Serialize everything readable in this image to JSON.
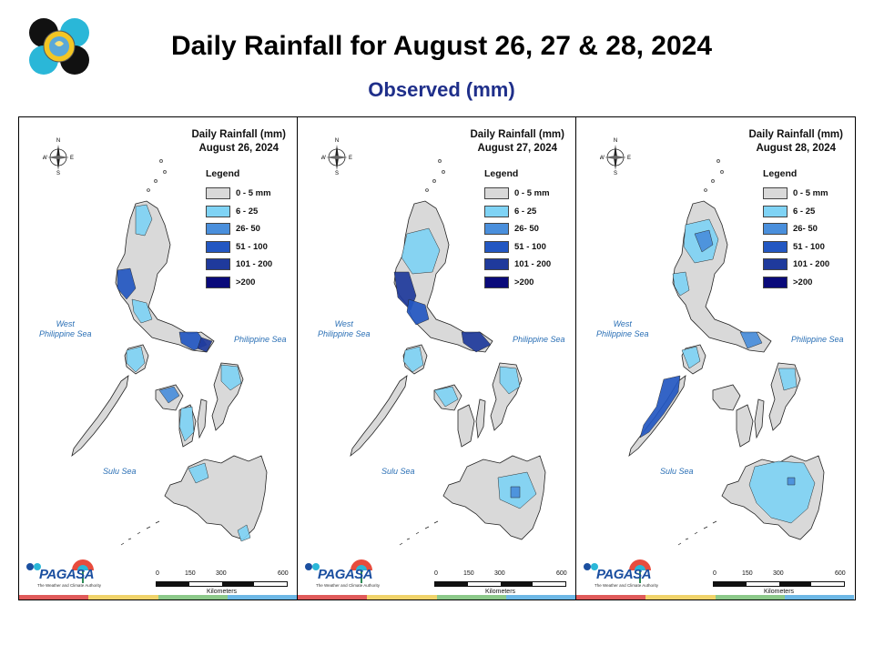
{
  "header": {
    "title": "Daily Rainfall for August 26, 27 & 28, 2024",
    "subtitle": "Observed (mm)"
  },
  "legend": {
    "title": "Legend",
    "classes": [
      {
        "label": "0 - 5 mm",
        "color": "#d9d9d9"
      },
      {
        "label": "6 - 25",
        "color": "#7fd3f5"
      },
      {
        "label": "26- 50",
        "color": "#4a8fdc"
      },
      {
        "label": "51 - 100",
        "color": "#2357c2"
      },
      {
        "label": "101 - 200",
        "color": "#1f3a9c"
      },
      {
        "label": ">200",
        "color": "#0a0a7a"
      }
    ]
  },
  "labels": {
    "west_sea": "West\nPhilippine Sea",
    "east_sea": "Philippine Sea",
    "sulu_sea": "Sulu Sea",
    "compass_n": "N",
    "compass_s": "S",
    "compass_e": "E",
    "compass_w": "W",
    "scale_ticks": [
      "0",
      "150",
      "300",
      "600"
    ],
    "scale_unit": "Kilometers",
    "pagasa_name": "PAGASA",
    "pagasa_tag": "The Weather and Climate Authority",
    "pagasa_dost": "DOST"
  },
  "panels": [
    {
      "heading": "Daily Rainfall (mm)",
      "date": "August 26, 2024"
    },
    {
      "heading": "Daily Rainfall (mm)",
      "date": "August 27, 2024"
    },
    {
      "heading": "Daily Rainfall (mm)",
      "date": "August 28, 2024"
    }
  ],
  "colors": {
    "stripe_red": "#e05a5a",
    "stripe_yellow": "#f0d36a",
    "stripe_green": "#8cc98a",
    "stripe_blue": "#6db8e6",
    "land_base": "#d9d9d9"
  }
}
